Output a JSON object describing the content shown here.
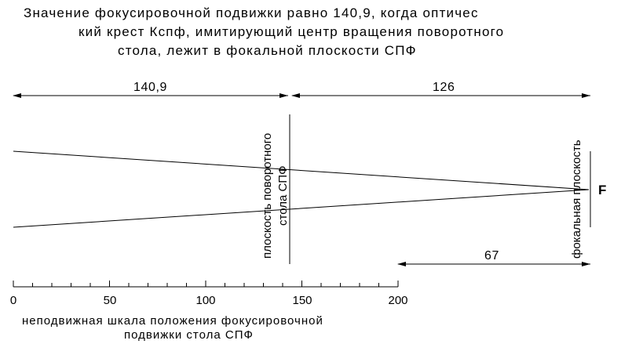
{
  "title": {
    "line1": "Значение фокусировочной подвижки равно 140,9, когда оптичес",
    "line2": "кий крест Кспф,  имитирующий центр  вращения   поворотного",
    "line3": "стола, лежит в фокальной плоскости СПФ"
  },
  "dimensions": {
    "left": "140,9",
    "right": "126",
    "lower": "67"
  },
  "labels": {
    "rotary_plane_line1": "плоскость поворотного",
    "rotary_plane_line2": "стола   СПФ",
    "focal_plane_line1": "фокальная   плоскость",
    "focus_point": "F"
  },
  "scale": {
    "ticks": [
      "0",
      "50",
      "100",
      "150",
      "200"
    ],
    "caption_line1": "неподвижная шкала положения фокусировочной",
    "caption_line2": "подвижки стола СПФ"
  }
}
